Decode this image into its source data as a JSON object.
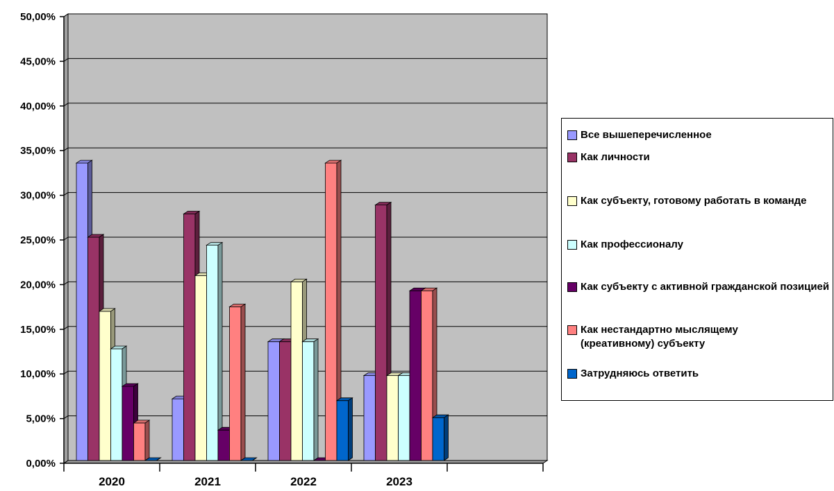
{
  "chart_data": {
    "type": "bar",
    "categories": [
      "2020",
      "2021",
      "2022",
      "2023"
    ],
    "ylim": [
      0,
      50
    ],
    "yticks": [
      "0,00%",
      "5,00%",
      "10,00%",
      "15,00%",
      "20,00%",
      "25,00%",
      "30,00%",
      "35,00%",
      "40,00%",
      "45,00%",
      "50,00%"
    ],
    "grid": true,
    "legend_position": "right",
    "series": [
      {
        "name": "Все вышеперечисленное",
        "color": "#9999ff",
        "values": [
          33.3,
          6.9,
          13.3,
          9.5
        ]
      },
      {
        "name": "Как личности",
        "color": "#993366",
        "values": [
          25.0,
          27.6,
          13.3,
          28.6
        ]
      },
      {
        "name": "Как субъекту, готовому работать в команде",
        "color": "#ffffcc",
        "values": [
          16.7,
          20.7,
          20.0,
          9.5
        ]
      },
      {
        "name": "Как профессионалу",
        "color": "#ccffff",
        "values": [
          12.5,
          24.1,
          13.3,
          9.5
        ]
      },
      {
        "name": "Как субъекту с активной гражданской позицией",
        "color": "#660066",
        "values": [
          8.3,
          3.4,
          0.0,
          19.0
        ]
      },
      {
        "name": "Как нестандартно мыслящему (креативному) субъекту",
        "color": "#ff8080",
        "values": [
          4.2,
          17.2,
          33.3,
          19.0
        ]
      },
      {
        "name": "Затрудняюсь ответить",
        "color": "#0066cc",
        "values": [
          0.0,
          0.0,
          6.7,
          4.8
        ]
      }
    ]
  }
}
